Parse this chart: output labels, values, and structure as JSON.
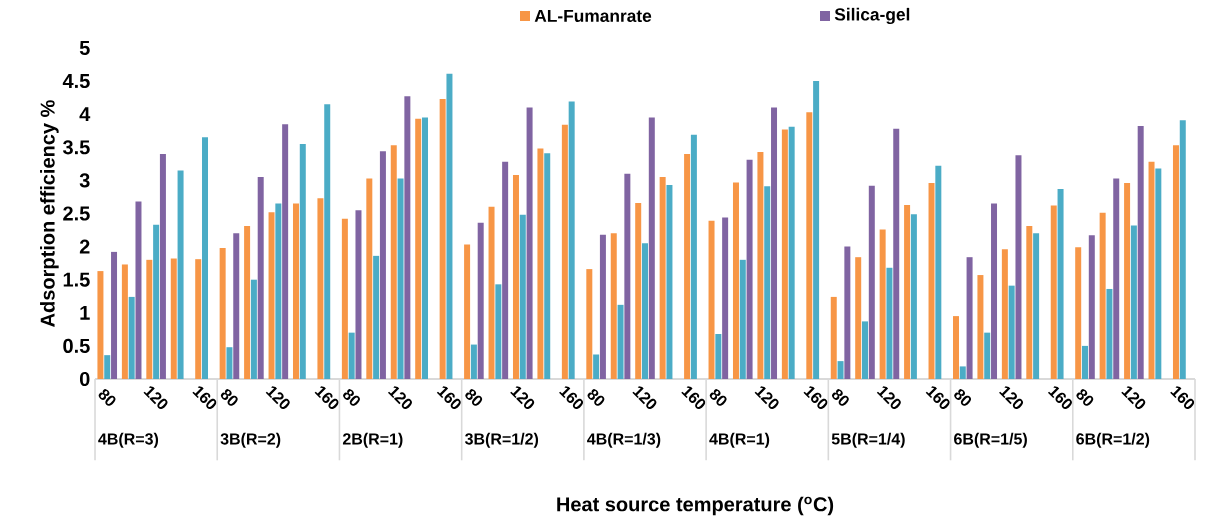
{
  "chart_data": {
    "type": "bar",
    "xlabel": "Heat source temperature ($^{o}$C)",
    "ylabel": "Adsorption efficiency %",
    "categories": [
      "80",
      null,
      "120",
      null,
      "160",
      "80",
      null,
      "120",
      null,
      "160",
      "80",
      null,
      "120",
      null,
      "160",
      "80",
      null,
      "120",
      null,
      "160",
      "80",
      null,
      "120",
      null,
      "160",
      "80",
      null,
      "120",
      null,
      "160",
      "80",
      null,
      "120",
      null,
      "160",
      "80",
      null,
      "120",
      null,
      "160",
      "80",
      null,
      "120",
      null,
      "160"
    ],
    "annotations": [
      "4B(R=3)",
      "3B(R=2)",
      "2B(R=1)",
      "3B(R=1/2)",
      "4B(R=1/3)",
      "4B(R=1)",
      "5B(R=1/4)",
      "6B(R=1/5)",
      "6B(R=1/2)"
    ],
    "series": [
      {
        "name": "AL-Fumanrate",
        "color": "#f79646",
        "values": [
          1.63,
          1.73,
          1.8,
          1.82,
          1.81,
          1.98,
          2.31,
          2.52,
          2.65,
          2.73,
          2.42,
          3.03,
          3.53,
          3.93,
          4.23,
          2.03,
          2.6,
          3.08,
          3.48,
          3.84,
          1.66,
          2.2,
          2.66,
          3.05,
          3.4,
          2.39,
          2.97,
          3.43,
          3.77,
          4.03,
          1.24,
          1.84,
          2.26,
          2.63,
          2.96,
          0.95,
          1.57,
          1.96,
          2.31,
          2.62,
          1.99,
          2.51,
          2.96,
          3.28,
          3.53
        ]
      },
      {
        "color": "#4bacc6",
        "values": [
          0.36,
          1.24,
          2.33,
          3.15,
          3.65,
          0.48,
          1.5,
          2.65,
          3.55,
          4.15,
          0.7,
          1.86,
          3.03,
          3.95,
          4.61,
          0.52,
          1.43,
          2.48,
          3.41,
          4.19,
          0.37,
          1.12,
          2.05,
          2.93,
          3.69,
          0.68,
          1.8,
          2.91,
          3.81,
          4.5,
          0.27,
          0.87,
          1.68,
          2.49,
          3.22,
          0.19,
          0.7,
          1.41,
          2.2,
          2.87,
          0.5,
          1.36,
          2.32,
          3.18,
          3.91
        ]
      },
      {
        "name": "Silica-gel",
        "color": "#8064a2",
        "values": [
          1.92,
          2.68,
          3.4,
          null,
          null,
          2.2,
          3.05,
          3.85,
          null,
          null,
          2.55,
          3.44,
          4.27,
          null,
          null,
          2.36,
          3.28,
          4.1,
          null,
          null,
          2.18,
          3.1,
          3.95,
          null,
          null,
          2.44,
          3.31,
          4.1,
          null,
          null,
          2.0,
          2.92,
          3.78,
          null,
          null,
          1.84,
          2.65,
          3.38,
          null,
          null,
          2.17,
          3.03,
          3.82,
          null,
          null
        ]
      }
    ],
    "ylim": [
      0,
      5
    ],
    "yticks": [
      0,
      0.5,
      1,
      1.5,
      2,
      2.5,
      3,
      3.5,
      4,
      4.5,
      5
    ],
    "grid": false,
    "legend": "top"
  }
}
